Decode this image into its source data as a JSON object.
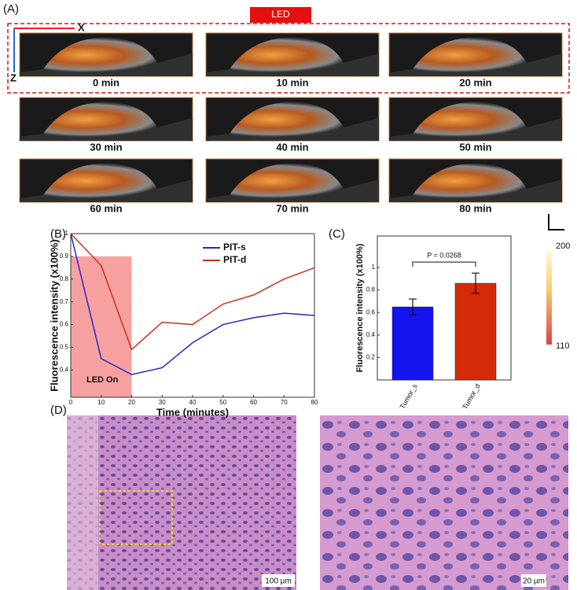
{
  "panel_labels": [
    "(A)",
    "(B)",
    "(C)",
    "(D)"
  ],
  "panel_a": {
    "led_label": "LED",
    "axis_x": "X",
    "axis_z": "Z",
    "times": [
      "0 min",
      "10 min",
      "20 min",
      "30 min",
      "40 min",
      "50 min",
      "60 min",
      "70 min",
      "80 min"
    ]
  },
  "colorbar": {
    "max_label": "200",
    "min_label": "110"
  },
  "scale_bars": [
    "100 µm",
    "20 µm"
  ],
  "chart_data": [
    {
      "type": "line",
      "xlabel": "Time (minutes)",
      "ylabel": "Fluorescence intensity (x100%)",
      "x": [
        0,
        10,
        20,
        30,
        40,
        50,
        60,
        70,
        80
      ],
      "xlim": [
        0,
        80
      ],
      "xticks": [
        0,
        10,
        20,
        30,
        40,
        50,
        60,
        70,
        80
      ],
      "ylim": [
        0.28,
        1
      ],
      "yticks": [
        0.4,
        0.5,
        0.6,
        0.7,
        0.8,
        0.9,
        1
      ],
      "legend": "upper right",
      "shaded_region": {
        "x": [
          0,
          20
        ],
        "ytop": 0.9,
        "label": "LED On",
        "color": "#f7a0a0"
      },
      "series": [
        {
          "name": "PIT-s",
          "color": "#2626c8",
          "values": [
            1.0,
            0.45,
            0.38,
            0.41,
            0.52,
            0.6,
            0.63,
            0.65,
            0.64
          ]
        },
        {
          "name": "PIT-d",
          "color": "#c8321e",
          "values": [
            1.0,
            0.86,
            0.49,
            0.61,
            0.6,
            0.69,
            0.73,
            0.8,
            0.85
          ]
        }
      ]
    },
    {
      "type": "bar",
      "ylabel": "Fluorescence intensity (x100%)",
      "categories": [
        "Tumor_s",
        "Tumor_d"
      ],
      "values": [
        0.65,
        0.86
      ],
      "errors": [
        0.07,
        0.09
      ],
      "colors": [
        "#1414f0",
        "#d42a0a"
      ],
      "ylim": [
        0,
        1.28
      ],
      "yticks": [
        0.2,
        0.4,
        0.6,
        0.8,
        1
      ],
      "annotation": "P = 0.0268"
    }
  ]
}
